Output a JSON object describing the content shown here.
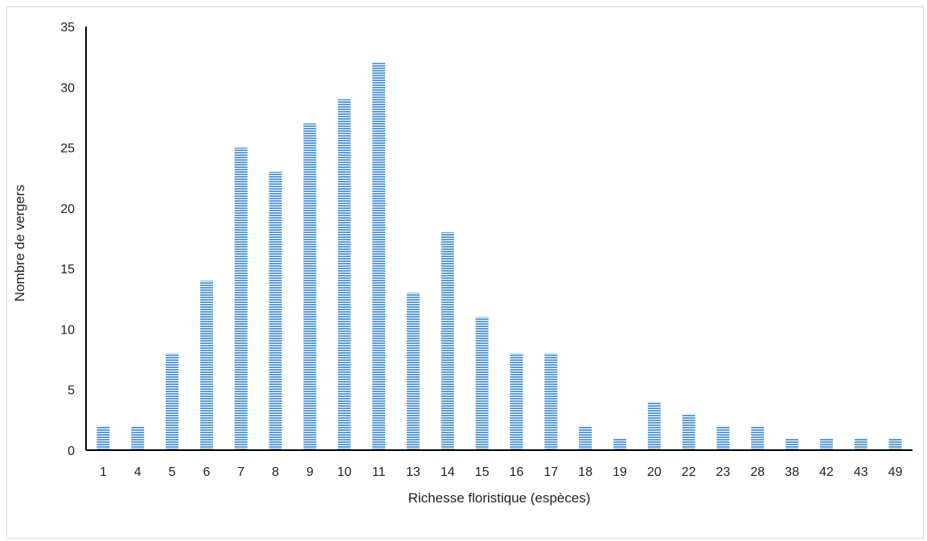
{
  "chart_data": {
    "type": "bar",
    "title": "",
    "xlabel": "Richesse floristique (espèces)",
    "ylabel": "Nombre de vergers",
    "categories": [
      "1",
      "4",
      "5",
      "6",
      "7",
      "8",
      "9",
      "10",
      "11",
      "13",
      "14",
      "15",
      "16",
      "17",
      "18",
      "19",
      "20",
      "22",
      "23",
      "28",
      "38",
      "42",
      "43",
      "49"
    ],
    "values": [
      2,
      2,
      8,
      14,
      25,
      23,
      27,
      29,
      32,
      13,
      18,
      11,
      8,
      8,
      2,
      1,
      4,
      3,
      2,
      2,
      1,
      1,
      1,
      1
    ],
    "ylim": [
      0,
      35
    ],
    "yticks": [
      "0",
      "5",
      "10",
      "15",
      "20",
      "25",
      "30",
      "35"
    ],
    "grid": false,
    "legend": "none",
    "bar_color": "#5b9bd5",
    "bar_stripe_color": "#ffffff"
  }
}
